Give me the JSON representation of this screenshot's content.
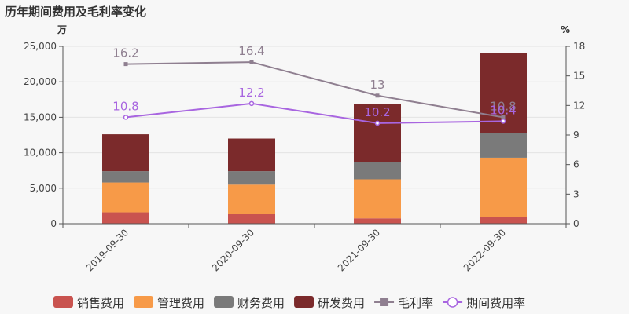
{
  "chart_data": {
    "type": "bar",
    "title": "历年期间费用及毛利率变化",
    "left_axis_unit": "万",
    "right_axis_unit": "%",
    "categories": [
      "2019-09-30",
      "2020-09-30",
      "2021-09-30",
      "2022-09-30"
    ],
    "ylim": [
      0,
      25000
    ],
    "yticks": [
      0,
      5000,
      10000,
      15000,
      20000,
      25000
    ],
    "ytick_labels": [
      "0",
      "5,000",
      "10,000",
      "15,000",
      "20,000",
      "25,000"
    ],
    "y2lim": [
      0,
      18
    ],
    "y2ticks": [
      0,
      3,
      6,
      9,
      12,
      15,
      18
    ],
    "y2tick_labels": [
      "0",
      "3",
      "6",
      "9",
      "12",
      "15",
      "18"
    ],
    "bar_series": [
      {
        "name": "销售费用",
        "color": "#c9534f",
        "values": [
          1600,
          1350,
          750,
          900
        ]
      },
      {
        "name": "管理费用",
        "color": "#f79a48",
        "values": [
          4200,
          4150,
          5500,
          8400
        ]
      },
      {
        "name": "财务费用",
        "color": "#7a7a7a",
        "values": [
          1600,
          1900,
          2400,
          3500
        ]
      },
      {
        "name": "研发费用",
        "color": "#7b2a2b",
        "values": [
          5200,
          4600,
          8200,
          11300
        ]
      }
    ],
    "line_series": [
      {
        "name": "毛利率",
        "color": "#8f7f90",
        "marker": "square",
        "values": [
          16.2,
          16.4,
          13,
          10.8
        ],
        "labels": [
          "16.2",
          "16.4",
          "13",
          "10.8"
        ]
      },
      {
        "name": "期间费用率",
        "color": "#a865e0",
        "marker": "circle",
        "values": [
          10.8,
          12.2,
          10.2,
          10.4
        ],
        "labels": [
          "10.8",
          "12.2",
          "10.2",
          "10.4"
        ]
      }
    ]
  }
}
